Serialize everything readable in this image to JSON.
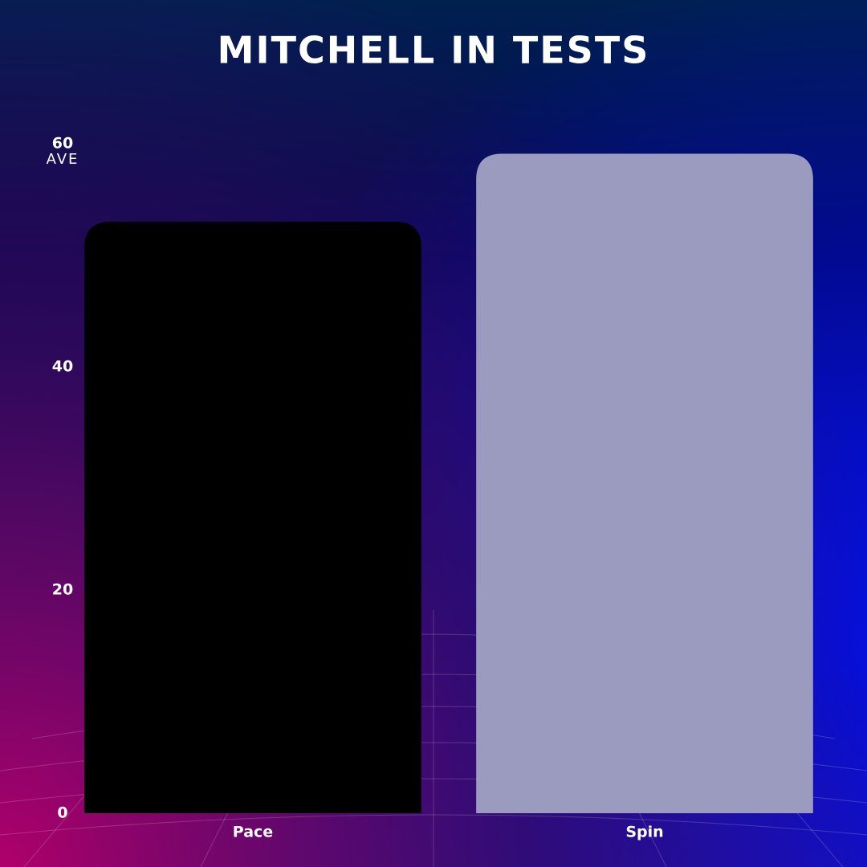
{
  "chart_data": {
    "type": "bar",
    "title": "MITCHELL IN TESTS",
    "y_label": "AVE",
    "categories": [
      "Pace",
      "Spin"
    ],
    "values": [
      53,
      59.1
    ],
    "colors": [
      "#000000",
      "#9b9bc0"
    ],
    "ylim": [
      0,
      60
    ],
    "yticks": [
      0,
      20,
      40,
      60
    ],
    "grid": false
  }
}
